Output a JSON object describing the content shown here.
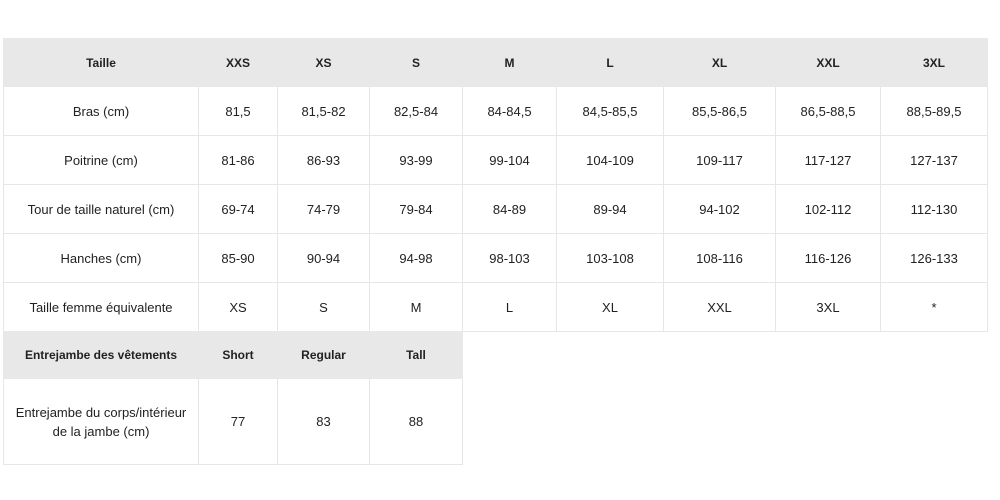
{
  "size_table": {
    "headers": [
      "Taille",
      "XXS",
      "XS",
      "S",
      "M",
      "L",
      "XL",
      "XXL",
      "3XL"
    ],
    "rows": [
      [
        "Bras (cm)",
        "81,5",
        "81,5-82",
        "82,5-84",
        "84-84,5",
        "84,5-85,5",
        "85,5-86,5",
        "86,5-88,5",
        "88,5-89,5"
      ],
      [
        "Poitrine (cm)",
        "81-86",
        "86-93",
        "93-99",
        "99-104",
        "104-109",
        "109-117",
        "117-127",
        "127-137"
      ],
      [
        "Tour de taille naturel (cm)",
        "69-74",
        "74-79",
        "79-84",
        "84-89",
        "89-94",
        "94-102",
        "102-112",
        "112-130"
      ],
      [
        "Hanches (cm)",
        "85-90",
        "90-94",
        "94-98",
        "98-103",
        "103-108",
        "108-116",
        "116-126",
        "126-133"
      ],
      [
        "Taille femme équivalente",
        "XS",
        "S",
        "M",
        "L",
        "XL",
        "XXL",
        "3XL",
        "*"
      ]
    ]
  },
  "inseam_table": {
    "headers": [
      "Entrejambe des vêtements",
      "Short",
      "Regular",
      "Tall"
    ],
    "rows": [
      [
        "Entrejambe du corps/intérieur de la jambe (cm)",
        "77",
        "83",
        "88"
      ]
    ]
  }
}
